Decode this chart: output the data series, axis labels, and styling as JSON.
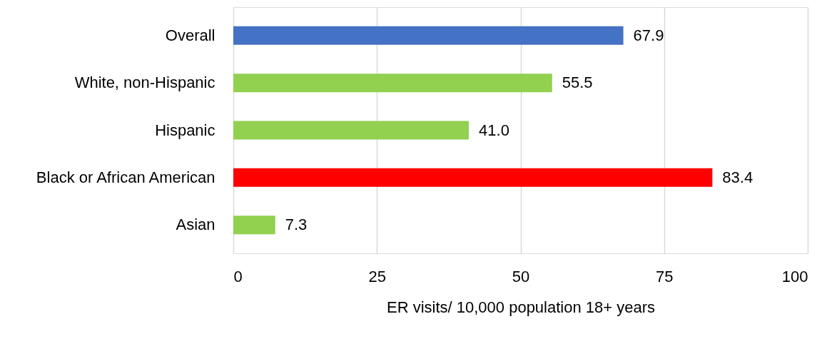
{
  "chart_data": {
    "type": "bar",
    "orientation": "horizontal",
    "categories": [
      "Overall",
      "White, non-Hispanic",
      "Hispanic",
      "Black or African American",
      "Asian"
    ],
    "values": [
      67.9,
      55.5,
      41.0,
      83.4,
      7.3
    ],
    "colors": [
      "#4472c4",
      "#92d050",
      "#92d050",
      "#ff0000",
      "#92d050"
    ],
    "value_labels": [
      "67.9",
      "55.5",
      "41.0",
      "83.4",
      "7.3"
    ],
    "xlim": [
      0,
      100
    ],
    "xticks": [
      0,
      25,
      50,
      75,
      100
    ],
    "xlabel": "ER visits/ 10,000 population 18+ years",
    "grid": "x"
  }
}
